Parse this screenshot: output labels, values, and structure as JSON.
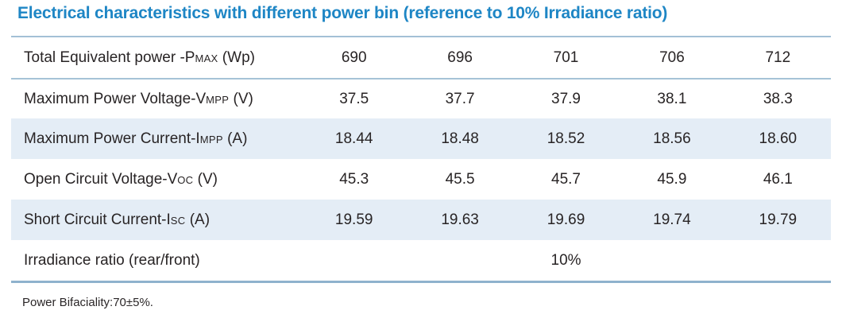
{
  "title": "Electrical characteristics with different power bin (reference to 10% Irradiance ratio)",
  "colors": {
    "title_blue": "#1e86c5",
    "row_shade": "#e4edf6",
    "rule_light": "#a6c3d7",
    "rule_dark": "#8fb2cd",
    "text": "#282425"
  },
  "table": {
    "rows": [
      {
        "label_pre": "Total Equivalent power -P",
        "label_sub": "MAX",
        "label_post": " (Wp)",
        "values": [
          "690",
          "696",
          "701",
          "706",
          "712"
        ]
      },
      {
        "label_pre": "Maximum Power Voltage-V",
        "label_sub": "MPP",
        "label_post": " (V)",
        "values": [
          "37.5",
          "37.7",
          "37.9",
          "38.1",
          "38.3"
        ]
      },
      {
        "label_pre": "Maximum Power Current-I",
        "label_sub": "MPP",
        "label_post": " (A)",
        "values": [
          "18.44",
          "18.48",
          "18.52",
          "18.56",
          "18.60"
        ]
      },
      {
        "label_pre": "Open Circuit Voltage-V",
        "label_sub": "OC",
        "label_post": " (V)",
        "values": [
          "45.3",
          "45.5",
          "45.7",
          "45.9",
          "46.1"
        ]
      },
      {
        "label_pre": "Short Circuit Current-I",
        "label_sub": "SC",
        "label_post": " (A)",
        "values": [
          "19.59",
          "19.63",
          "19.69",
          "19.74",
          "19.79"
        ]
      },
      {
        "label_pre": "Irradiance ratio (rear/front)",
        "label_sub": "",
        "label_post": "",
        "values": [
          "",
          "",
          "10%",
          "",
          ""
        ]
      }
    ]
  },
  "footnote": "Power Bifaciality:70±5%.",
  "chart_data": {
    "type": "table",
    "title": "Electrical characteristics with different power bin (reference to 10% Irradiance ratio)",
    "row_headers": [
      "Total Equivalent power -PMAX (Wp)",
      "Maximum Power Voltage-VMPP (V)",
      "Maximum Power Current-IMPP (A)",
      "Open Circuit Voltage-VOC (V)",
      "Short Circuit Current-ISC (A)",
      "Irradiance ratio (rear/front)"
    ],
    "series": [
      {
        "name": "Total Equivalent power -PMAX (Wp)",
        "values": [
          690,
          696,
          701,
          706,
          712
        ]
      },
      {
        "name": "Maximum Power Voltage-VMPP (V)",
        "values": [
          37.5,
          37.7,
          37.9,
          38.1,
          38.3
        ]
      },
      {
        "name": "Maximum Power Current-IMPP (A)",
        "values": [
          18.44,
          18.48,
          18.52,
          18.56,
          18.6
        ]
      },
      {
        "name": "Open Circuit Voltage-VOC (V)",
        "values": [
          45.3,
          45.5,
          45.7,
          45.9,
          46.1
        ]
      },
      {
        "name": "Short Circuit Current-ISC (A)",
        "values": [
          19.59,
          19.63,
          19.69,
          19.74,
          19.79
        ]
      },
      {
        "name": "Irradiance ratio (rear/front)",
        "values": [
          "10%"
        ]
      }
    ],
    "annotations": [
      "Power Bifaciality:70±5%."
    ]
  }
}
